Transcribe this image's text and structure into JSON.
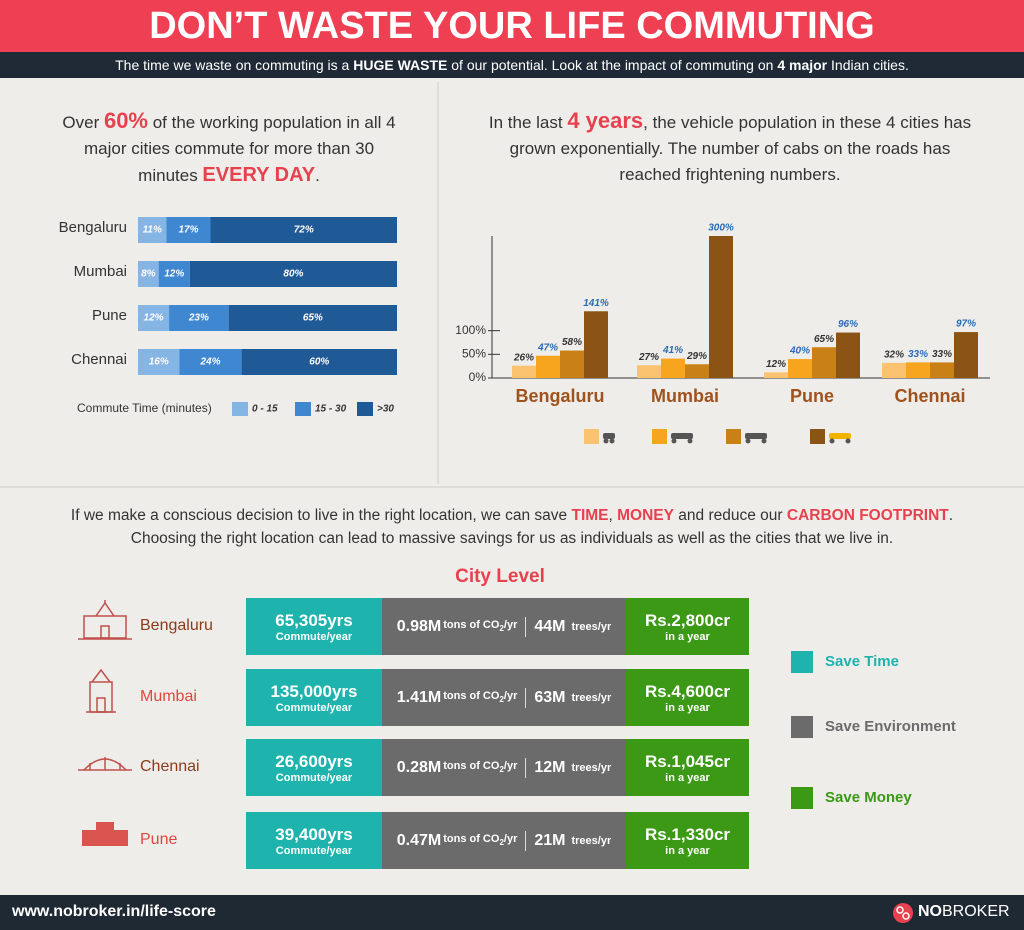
{
  "header": {
    "title": "DON’T WASTE YOUR LIFE COMMUTING",
    "subtitle": [
      "The time we waste on commuting is a ",
      "HUGE WASTE",
      " of our potential. Look at the impact of commuting on ",
      "4 major",
      " Indian cities."
    ]
  },
  "left_intro": [
    "Over ",
    "60%",
    " of the working population in all 4 major cities commute for more than 30 minutes ",
    "EVERY DAY",
    "."
  ],
  "right_intro": [
    "In the last ",
    "4 years",
    ", the vehicle population in these 4 cities has grown exponentially. The number of cabs on the roads has reached frightening numbers."
  ],
  "chart_data": [
    {
      "type": "stacked_bar",
      "orientation": "horizontal",
      "categories": [
        "Bengaluru",
        "Mumbai",
        "Pune",
        "Chennai"
      ],
      "series": [
        {
          "name": "0 - 15",
          "color": "#85b5e5",
          "values": [
            11,
            8,
            12,
            16
          ],
          "value_labels": [
            "11%",
            "8%",
            "12%",
            "16%"
          ]
        },
        {
          "name": "15 - 30",
          "color": "#3f87d0",
          "values": [
            17,
            12,
            23,
            24
          ],
          "value_labels": [
            "17%",
            "12%",
            "23%",
            "24%"
          ]
        },
        {
          "name": ">30",
          "color": "#1f5a96",
          "values": [
            72,
            80,
            65,
            60
          ],
          "value_labels": [
            "72%",
            "80%",
            "65%",
            "60%"
          ]
        }
      ],
      "xlim": [
        0,
        100
      ],
      "legend_title": "Commute Time (minutes)"
    },
    {
      "type": "bar",
      "categories": [
        "Bengaluru",
        "Mumbai",
        "Pune",
        "Chennai"
      ],
      "series": [
        {
          "color": "#fbc26f",
          "label_color": "#333333",
          "values": [
            26,
            27,
            12,
            32
          ],
          "value_labels": [
            "26%",
            "27%",
            "12%",
            "32%"
          ]
        },
        {
          "color": "#f7a51f",
          "label_color": "#2a6bb5",
          "values": [
            47,
            41,
            40,
            33
          ],
          "value_labels": [
            "47%",
            "41%",
            "40%",
            "33%"
          ]
        },
        {
          "color": "#c98016",
          "label_color": "#333333",
          "values": [
            58,
            29,
            65,
            33
          ],
          "value_labels": [
            "58%",
            "29%",
            "65%",
            "33%"
          ]
        },
        {
          "color": "#8c5414",
          "label_color": "#2a6bb5",
          "values": [
            141,
            300,
            96,
            97
          ],
          "value_labels": [
            "141%",
            "300%",
            "96%",
            "97%"
          ]
        }
      ],
      "ylim": [
        0,
        300
      ],
      "yticks": [
        {
          "value": 0,
          "label": "0%"
        },
        {
          "value": 50,
          "label": "50%"
        },
        {
          "value": 100,
          "label": "100%"
        }
      ]
    }
  ],
  "savings_text": [
    "If we make a conscious decision to live in the right location, we can save ",
    "TIME",
    ", ",
    "MONEY",
    " and reduce our ",
    "CARBON FOOTPRINT",
    "."
  ],
  "savings_text_2": "Choosing the right location can lead to massive savings for us as individuals as well as the cities that we live in.",
  "city_level": {
    "title": "City Level",
    "units": {
      "time": "Commute/year",
      "co2": [
        "tons of CO",
        "2",
        "/yr"
      ],
      "trees": "trees/yr",
      "money": "in a year"
    },
    "rows": [
      {
        "city": "Bengaluru",
        "time": "65,305yrs",
        "co2": "0.98M",
        "trees": "44M",
        "money": "Rs.2,800cr"
      },
      {
        "city": "Mumbai",
        "time": "135,000yrs",
        "co2": "1.41M",
        "trees": "63M",
        "money": "Rs.4,600cr"
      },
      {
        "city": "Chennai",
        "time": "26,600yrs",
        "co2": "0.28M",
        "trees": "12M",
        "money": "Rs.1,045cr"
      },
      {
        "city": "Pune",
        "time": "39,400yrs",
        "co2": "0.47M",
        "trees": "21M",
        "money": "Rs.1,330cr"
      }
    ]
  },
  "legend": [
    {
      "label": "Save Time",
      "color": "#1fb3ae"
    },
    {
      "label": "Save Environment",
      "color": "#6b6b6b"
    },
    {
      "label": "Save Money",
      "color": "#3c9915"
    }
  ],
  "footer": {
    "url": "www.nobroker.in/life-score",
    "logo": [
      "NO",
      "BROKER"
    ]
  }
}
